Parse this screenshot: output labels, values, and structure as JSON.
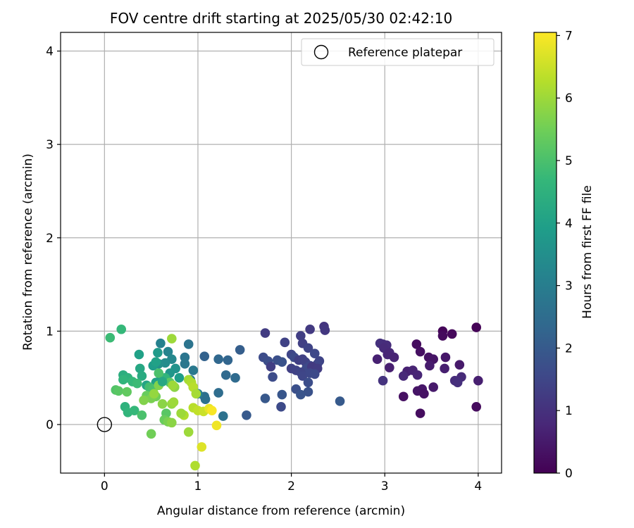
{
  "chart_data": {
    "type": "scatter",
    "title": "FOV centre drift starting at 2025/05/30 02:42:10",
    "xlabel": "Angular distance from reference (arcmin)",
    "ylabel": "Rotation from reference (arcmin)",
    "xlim": [
      -0.47,
      4.25
    ],
    "ylim": [
      -0.52,
      4.2
    ],
    "xticks": [
      0,
      1,
      2,
      3,
      4
    ],
    "yticks": [
      0,
      1,
      2,
      3,
      4
    ],
    "grid": true,
    "legend": {
      "position": "top-right",
      "entries": [
        "Reference platepar"
      ]
    },
    "reference_point": {
      "x": 0,
      "y": 0,
      "label": "Reference platepar"
    },
    "colorbar": {
      "label": "Hours from first FF file",
      "range": [
        0,
        7.05
      ],
      "ticks": [
        0,
        1,
        2,
        3,
        4,
        5,
        6,
        7
      ],
      "colormap": [
        "#440154",
        "#482878",
        "#3e4989",
        "#31688e",
        "#26828e",
        "#1f9e89",
        "#35b779",
        "#6ece58",
        "#b5de2b",
        "#fde725"
      ]
    },
    "points": [
      {
        "x": 3.98,
        "y": 1.04,
        "h": 0.05
      },
      {
        "x": 3.62,
        "y": 1.0,
        "h": 0.1
      },
      {
        "x": 3.72,
        "y": 0.97,
        "h": 0.15
      },
      {
        "x": 3.62,
        "y": 0.95,
        "h": 0.2
      },
      {
        "x": 3.34,
        "y": 0.86,
        "h": 0.25
      },
      {
        "x": 3.38,
        "y": 0.78,
        "h": 0.3
      },
      {
        "x": 3.47,
        "y": 0.72,
        "h": 0.35
      },
      {
        "x": 3.52,
        "y": 0.7,
        "h": 0.4
      },
      {
        "x": 3.65,
        "y": 0.72,
        "h": 0.45
      },
      {
        "x": 3.8,
        "y": 0.64,
        "h": 0.5
      },
      {
        "x": 3.48,
        "y": 0.63,
        "h": 0.55
      },
      {
        "x": 3.64,
        "y": 0.6,
        "h": 0.6
      },
      {
        "x": 3.24,
        "y": 0.57,
        "h": 0.65
      },
      {
        "x": 3.3,
        "y": 0.58,
        "h": 0.7
      },
      {
        "x": 3.35,
        "y": 0.53,
        "h": 0.75
      },
      {
        "x": 3.2,
        "y": 0.52,
        "h": 0.8
      },
      {
        "x": 3.82,
        "y": 0.51,
        "h": 0.85
      },
      {
        "x": 3.75,
        "y": 0.47,
        "h": 0.9
      },
      {
        "x": 3.78,
        "y": 0.45,
        "h": 0.95
      },
      {
        "x": 4.0,
        "y": 0.47,
        "h": 0.6
      },
      {
        "x": 3.52,
        "y": 0.4,
        "h": 0.5
      },
      {
        "x": 3.4,
        "y": 0.38,
        "h": 0.45
      },
      {
        "x": 3.35,
        "y": 0.36,
        "h": 0.4
      },
      {
        "x": 3.42,
        "y": 0.33,
        "h": 0.35
      },
      {
        "x": 3.2,
        "y": 0.3,
        "h": 0.3
      },
      {
        "x": 3.38,
        "y": 0.12,
        "h": 0.25
      },
      {
        "x": 3.98,
        "y": 0.19,
        "h": 0.2
      },
      {
        "x": 2.95,
        "y": 0.87,
        "h": 1.0
      },
      {
        "x": 2.98,
        "y": 0.86,
        "h": 0.95
      },
      {
        "x": 3.02,
        "y": 0.85,
        "h": 0.9
      },
      {
        "x": 2.99,
        "y": 0.82,
        "h": 0.85
      },
      {
        "x": 3.05,
        "y": 0.77,
        "h": 0.8
      },
      {
        "x": 3.03,
        "y": 0.75,
        "h": 0.75
      },
      {
        "x": 3.1,
        "y": 0.72,
        "h": 0.7
      },
      {
        "x": 2.92,
        "y": 0.7,
        "h": 0.65
      },
      {
        "x": 3.05,
        "y": 0.61,
        "h": 0.6
      },
      {
        "x": 2.98,
        "y": 0.47,
        "h": 1.05
      },
      {
        "x": 2.35,
        "y": 1.05,
        "h": 1.1
      },
      {
        "x": 2.36,
        "y": 1.01,
        "h": 1.15
      },
      {
        "x": 2.2,
        "y": 1.02,
        "h": 1.2
      },
      {
        "x": 1.72,
        "y": 0.98,
        "h": 1.25
      },
      {
        "x": 2.1,
        "y": 0.95,
        "h": 1.3
      },
      {
        "x": 2.12,
        "y": 0.87,
        "h": 1.35
      },
      {
        "x": 1.93,
        "y": 0.88,
        "h": 1.4
      },
      {
        "x": 2.18,
        "y": 0.82,
        "h": 1.45
      },
      {
        "x": 2.0,
        "y": 0.75,
        "h": 1.5
      },
      {
        "x": 2.25,
        "y": 0.76,
        "h": 1.55
      },
      {
        "x": 2.03,
        "y": 0.72,
        "h": 1.6
      },
      {
        "x": 1.7,
        "y": 0.72,
        "h": 1.65
      },
      {
        "x": 1.75,
        "y": 0.68,
        "h": 1.7
      },
      {
        "x": 1.85,
        "y": 0.69,
        "h": 1.75
      },
      {
        "x": 1.9,
        "y": 0.67,
        "h": 1.8
      },
      {
        "x": 2.08,
        "y": 0.69,
        "h": 1.3
      },
      {
        "x": 2.12,
        "y": 0.7,
        "h": 1.35
      },
      {
        "x": 2.15,
        "y": 0.67,
        "h": 1.4
      },
      {
        "x": 2.3,
        "y": 0.68,
        "h": 1.45
      },
      {
        "x": 2.28,
        "y": 0.65,
        "h": 1.5
      },
      {
        "x": 2.2,
        "y": 0.63,
        "h": 1.55
      },
      {
        "x": 2.16,
        "y": 0.6,
        "h": 1.6
      },
      {
        "x": 2.22,
        "y": 0.62,
        "h": 1.2
      },
      {
        "x": 2.28,
        "y": 0.6,
        "h": 1.25
      },
      {
        "x": 1.78,
        "y": 0.62,
        "h": 1.3
      },
      {
        "x": 2.0,
        "y": 0.6,
        "h": 1.35
      },
      {
        "x": 2.05,
        "y": 0.58,
        "h": 1.4
      },
      {
        "x": 2.1,
        "y": 0.56,
        "h": 1.45
      },
      {
        "x": 2.12,
        "y": 0.52,
        "h": 1.5
      },
      {
        "x": 2.2,
        "y": 0.55,
        "h": 1.55
      },
      {
        "x": 2.25,
        "y": 0.54,
        "h": 1.6
      },
      {
        "x": 1.8,
        "y": 0.51,
        "h": 1.65
      },
      {
        "x": 2.18,
        "y": 0.45,
        "h": 1.7
      },
      {
        "x": 2.05,
        "y": 0.38,
        "h": 1.75
      },
      {
        "x": 2.18,
        "y": 0.35,
        "h": 1.8
      },
      {
        "x": 2.1,
        "y": 0.32,
        "h": 1.85
      },
      {
        "x": 1.9,
        "y": 0.32,
        "h": 1.9
      },
      {
        "x": 1.72,
        "y": 0.28,
        "h": 1.95
      },
      {
        "x": 2.52,
        "y": 0.25,
        "h": 2.0
      },
      {
        "x": 1.89,
        "y": 0.19,
        "h": 1.6
      },
      {
        "x": 1.45,
        "y": 0.8,
        "h": 2.1
      },
      {
        "x": 1.07,
        "y": 0.73,
        "h": 2.2
      },
      {
        "x": 1.32,
        "y": 0.69,
        "h": 2.3
      },
      {
        "x": 1.22,
        "y": 0.7,
        "h": 2.35
      },
      {
        "x": 1.3,
        "y": 0.53,
        "h": 2.4
      },
      {
        "x": 1.4,
        "y": 0.5,
        "h": 2.45
      },
      {
        "x": 1.22,
        "y": 0.34,
        "h": 2.5
      },
      {
        "x": 1.07,
        "y": 0.3,
        "h": 2.55
      },
      {
        "x": 1.08,
        "y": 0.27,
        "h": 2.6
      },
      {
        "x": 1.27,
        "y": 0.09,
        "h": 2.65
      },
      {
        "x": 1.52,
        "y": 0.1,
        "h": 2.0
      },
      {
        "x": 0.9,
        "y": 0.86,
        "h": 2.7
      },
      {
        "x": 0.86,
        "y": 0.72,
        "h": 2.75
      },
      {
        "x": 0.86,
        "y": 0.65,
        "h": 2.8
      },
      {
        "x": 0.95,
        "y": 0.58,
        "h": 2.85
      },
      {
        "x": 0.92,
        "y": 0.48,
        "h": 2.9
      },
      {
        "x": 0.95,
        "y": 0.4,
        "h": 2.95
      },
      {
        "x": 1.0,
        "y": 0.33,
        "h": 3.0
      },
      {
        "x": 0.6,
        "y": 0.87,
        "h": 3.1
      },
      {
        "x": 0.68,
        "y": 0.78,
        "h": 3.2
      },
      {
        "x": 0.72,
        "y": 0.7,
        "h": 3.3
      },
      {
        "x": 0.65,
        "y": 0.66,
        "h": 3.4
      },
      {
        "x": 0.58,
        "y": 0.65,
        "h": 3.5
      },
      {
        "x": 0.76,
        "y": 0.6,
        "h": 3.6
      },
      {
        "x": 0.7,
        "y": 0.55,
        "h": 3.7
      },
      {
        "x": 0.6,
        "y": 0.48,
        "h": 3.8
      },
      {
        "x": 0.8,
        "y": 0.5,
        "h": 3.9
      },
      {
        "x": 0.55,
        "y": 0.45,
        "h": 4.0
      },
      {
        "x": 0.45,
        "y": 0.42,
        "h": 4.1
      },
      {
        "x": 0.38,
        "y": 0.6,
        "h": 4.2
      },
      {
        "x": 0.4,
        "y": 0.52,
        "h": 4.3
      },
      {
        "x": 0.2,
        "y": 0.53,
        "h": 4.4
      },
      {
        "x": 0.25,
        "y": 0.5,
        "h": 4.5
      },
      {
        "x": 0.2,
        "y": 0.48,
        "h": 4.6
      },
      {
        "x": 0.3,
        "y": 0.46,
        "h": 4.7
      },
      {
        "x": 0.35,
        "y": 0.44,
        "h": 4.8
      },
      {
        "x": 0.48,
        "y": 0.4,
        "h": 4.9
      },
      {
        "x": 0.52,
        "y": 0.38,
        "h": 5.0
      },
      {
        "x": 0.12,
        "y": 0.37,
        "h": 5.1
      },
      {
        "x": 0.15,
        "y": 0.36,
        "h": 5.2
      },
      {
        "x": 0.24,
        "y": 0.35,
        "h": 5.3
      },
      {
        "x": 0.45,
        "y": 0.31,
        "h": 5.4
      },
      {
        "x": 0.55,
        "y": 0.3,
        "h": 5.5
      },
      {
        "x": 0.5,
        "y": 0.28,
        "h": 5.6
      },
      {
        "x": 0.42,
        "y": 0.26,
        "h": 5.7
      },
      {
        "x": 0.62,
        "y": 0.22,
        "h": 5.8
      },
      {
        "x": 0.72,
        "y": 0.22,
        "h": 5.9
      },
      {
        "x": 0.74,
        "y": 0.24,
        "h": 6.0
      },
      {
        "x": 0.22,
        "y": 0.19,
        "h": 4.5
      },
      {
        "x": 0.25,
        "y": 0.13,
        "h": 4.6
      },
      {
        "x": 0.32,
        "y": 0.15,
        "h": 4.7
      },
      {
        "x": 0.4,
        "y": 0.1,
        "h": 5.0
      },
      {
        "x": 0.66,
        "y": 0.12,
        "h": 5.2
      },
      {
        "x": 0.64,
        "y": 0.05,
        "h": 5.4
      },
      {
        "x": 0.68,
        "y": 0.03,
        "h": 5.6
      },
      {
        "x": 0.72,
        "y": 0.02,
        "h": 5.8
      },
      {
        "x": 0.18,
        "y": 1.02,
        "h": 4.7
      },
      {
        "x": 0.06,
        "y": 0.93,
        "h": 4.8
      },
      {
        "x": 0.37,
        "y": 0.75,
        "h": 4.0
      },
      {
        "x": 0.52,
        "y": 0.63,
        "h": 3.9
      },
      {
        "x": 0.57,
        "y": 0.77,
        "h": 3.8
      },
      {
        "x": 0.55,
        "y": 0.67,
        "h": 4.0
      },
      {
        "x": 0.65,
        "y": 0.5,
        "h": 4.6
      },
      {
        "x": 0.58,
        "y": 0.55,
        "h": 5.0
      },
      {
        "x": 0.7,
        "y": 0.45,
        "h": 5.2
      },
      {
        "x": 0.75,
        "y": 0.4,
        "h": 5.8
      },
      {
        "x": 0.73,
        "y": 0.42,
        "h": 6.0
      },
      {
        "x": 0.9,
        "y": 0.48,
        "h": 6.1
      },
      {
        "x": 0.93,
        "y": 0.45,
        "h": 6.2
      },
      {
        "x": 0.95,
        "y": 0.4,
        "h": 6.3
      },
      {
        "x": 0.72,
        "y": 0.92,
        "h": 6.0
      },
      {
        "x": 0.98,
        "y": 0.33,
        "h": 6.1
      },
      {
        "x": 0.85,
        "y": 0.1,
        "h": 6.2
      },
      {
        "x": 0.82,
        "y": 0.12,
        "h": 6.0
      },
      {
        "x": 0.95,
        "y": 0.18,
        "h": 6.3
      },
      {
        "x": 1.0,
        "y": 0.15,
        "h": 6.4
      },
      {
        "x": 1.06,
        "y": 0.14,
        "h": 6.5
      },
      {
        "x": 1.12,
        "y": 0.17,
        "h": 6.8
      },
      {
        "x": 1.15,
        "y": 0.15,
        "h": 7.0
      },
      {
        "x": 1.2,
        "y": -0.01,
        "h": 6.9
      },
      {
        "x": 1.04,
        "y": -0.24,
        "h": 6.7
      },
      {
        "x": 0.97,
        "y": -0.44,
        "h": 6.2
      },
      {
        "x": 0.9,
        "y": -0.08,
        "h": 6.0
      },
      {
        "x": 0.5,
        "y": -0.1,
        "h": 5.5
      },
      {
        "x": 0.53,
        "y": 0.33,
        "h": 5.9
      },
      {
        "x": 0.58,
        "y": 0.42,
        "h": 5.7
      },
      {
        "x": 0.62,
        "y": 0.46,
        "h": 4.2
      }
    ]
  }
}
